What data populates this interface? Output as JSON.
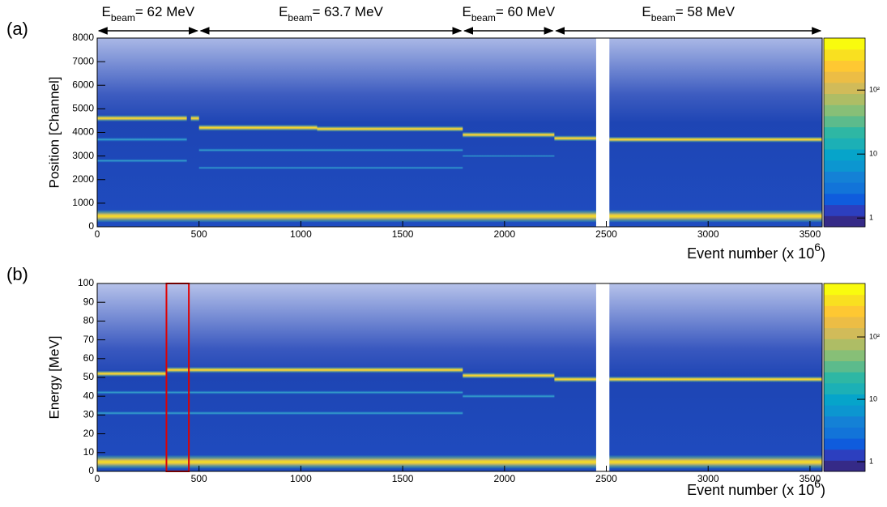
{
  "chart_data": [
    {
      "type": "heatmap",
      "panel_label": "(a)",
      "ylabel": "Position [Channel]",
      "xlabel": {
        "text": "Event number (x 10",
        "sup": "6",
        "end": ")"
      },
      "xlim": [
        0,
        3560
      ],
      "xticks": [
        0,
        500,
        1000,
        1500,
        2000,
        2500,
        3000,
        3500
      ],
      "ylim": [
        0,
        8000
      ],
      "yticks": [
        0,
        1000,
        2000,
        3000,
        4000,
        5000,
        6000,
        7000,
        8000
      ],
      "log_color_scale": true,
      "clim": [
        0.73,
        650
      ],
      "cticks": [
        1,
        10,
        {
          "value": 100,
          "label": "10²"
        }
      ],
      "gap": [
        2450,
        2515
      ],
      "peaks": [
        {
          "x": [
            0,
            440
          ],
          "y": 4600,
          "width": 250
        },
        {
          "x": [
            460,
            500
          ],
          "y": 4600,
          "width": 250
        },
        {
          "x": [
            500,
            1080
          ],
          "y": 4200,
          "width": 250
        },
        {
          "x": [
            1080,
            1795
          ],
          "y": 4150,
          "width": 230
        },
        {
          "x": [
            1795,
            2245
          ],
          "y": 3900,
          "width": 230
        },
        {
          "x": [
            2245,
            2450
          ],
          "y": 3750,
          "width": 230
        },
        {
          "x": [
            2515,
            3560
          ],
          "y": 3700,
          "width": 230
        },
        {
          "x": [
            0,
            3560
          ],
          "y": 450,
          "width": 500
        }
      ],
      "ridges": [
        {
          "x": [
            0,
            440
          ],
          "y": 3700,
          "width": 180
        },
        {
          "x": [
            0,
            440
          ],
          "y": 2800,
          "width": 150
        },
        {
          "x": [
            500,
            1795
          ],
          "y": 3250,
          "width": 150
        },
        {
          "x": [
            500,
            1795
          ],
          "y": 2500,
          "width": 120
        },
        {
          "x": [
            1795,
            2245
          ],
          "y": 3000,
          "width": 100
        }
      ],
      "annotations": [
        {
          "text": "E",
          "sub": "beam",
          "rest": "= 62 MeV",
          "x": [
            0,
            500
          ]
        },
        {
          "text": "E",
          "sub": "beam",
          "rest": "= 63.7 MeV",
          "x": [
            500,
            1795
          ]
        },
        {
          "text": "E",
          "sub": "beam",
          "rest": "= 60 MeV",
          "x": [
            1795,
            2245
          ]
        },
        {
          "text": "E",
          "sub": "beam",
          "rest": "= 58 MeV",
          "x": [
            2245,
            3560
          ]
        }
      ]
    },
    {
      "type": "heatmap",
      "panel_label": "(b)",
      "ylabel": "Energy [MeV]",
      "xlabel": {
        "text": "Event number (x 10",
        "sup": "6",
        "end": ")"
      },
      "xlim": [
        0,
        3560
      ],
      "xticks": [
        0,
        500,
        1000,
        1500,
        2000,
        2500,
        3000,
        3500
      ],
      "ylim": [
        0,
        100
      ],
      "yticks": [
        0,
        10,
        20,
        30,
        40,
        50,
        60,
        70,
        80,
        90,
        100
      ],
      "log_color_scale": true,
      "clim": [
        0.7,
        720
      ],
      "cticks": [
        1,
        10,
        {
          "value": 100,
          "label": "10²"
        }
      ],
      "gap": [
        2450,
        2515
      ],
      "peaks": [
        {
          "x": [
            0,
            340
          ],
          "y": 52,
          "width": 3
        },
        {
          "x": [
            340,
            450
          ],
          "y": 54,
          "width": 3
        },
        {
          "x": [
            450,
            1795
          ],
          "y": 54,
          "width": 3
        },
        {
          "x": [
            1795,
            2245
          ],
          "y": 51,
          "width": 3
        },
        {
          "x": [
            2245,
            2450
          ],
          "y": 49,
          "width": 3
        },
        {
          "x": [
            2515,
            3560
          ],
          "y": 49,
          "width": 3
        },
        {
          "x": [
            0,
            3560
          ],
          "y": 5,
          "width": 7
        }
      ],
      "ridges": [
        {
          "x": [
            0,
            1795
          ],
          "y": 42,
          "width": 2
        },
        {
          "x": [
            0,
            1795
          ],
          "y": 31,
          "width": 2
        },
        {
          "x": [
            1795,
            2245
          ],
          "y": 40,
          "width": 2
        }
      ],
      "highlight": {
        "x": [
          340,
          450
        ],
        "color": "#e00000"
      }
    }
  ]
}
